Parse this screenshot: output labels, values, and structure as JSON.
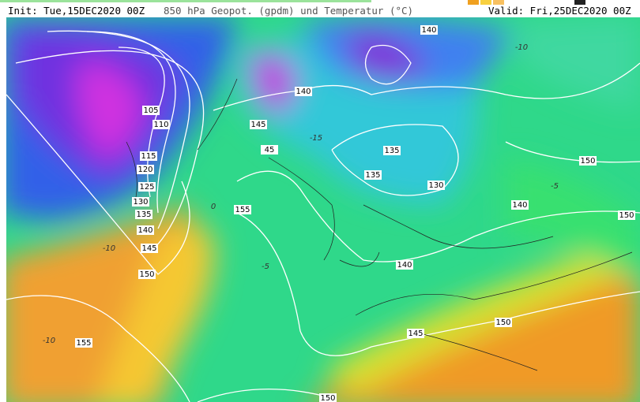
{
  "header": {
    "init": "Init: Tue,15DEC2020 00Z",
    "title": "850 hPa Geopot. (gpdm) und Temperatur (°C)",
    "valid": "Valid: Fri,25DEC2020 00Z"
  },
  "contour_labels": [
    "105",
    "110",
    "115",
    "120",
    "125",
    "130",
    "135",
    "140",
    "145",
    "150",
    "155",
    "145",
    "45",
    "140",
    "155",
    "135",
    "135",
    "130",
    "140",
    "150",
    "150",
    "140",
    "145",
    "150",
    "150",
    "140"
  ],
  "temperature_labels": [
    "-10",
    "-10",
    "0",
    "-5",
    "-5",
    "-15",
    "-10"
  ]
}
